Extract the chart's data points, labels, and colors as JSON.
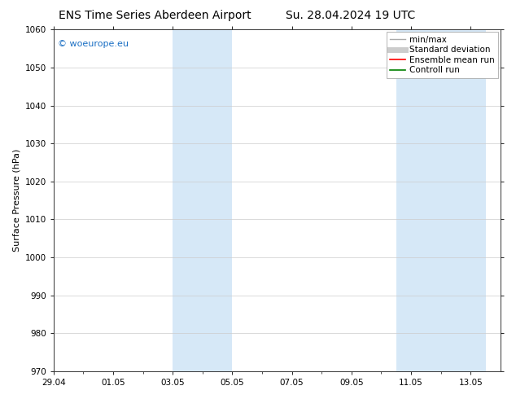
{
  "title_left": "ENS Time Series Aberdeen Airport",
  "title_right": "Su. 28.04.2024 19 UTC",
  "ylabel": "Surface Pressure (hPa)",
  "ylim": [
    970,
    1060
  ],
  "yticks": [
    970,
    980,
    990,
    1000,
    1010,
    1020,
    1030,
    1040,
    1050,
    1060
  ],
  "xtick_labels": [
    "29.04",
    "01.05",
    "03.05",
    "05.05",
    "07.05",
    "09.05",
    "11.05",
    "13.05"
  ],
  "xtick_positions": [
    0,
    2,
    4,
    6,
    8,
    10,
    12,
    14
  ],
  "xlim": [
    0,
    15
  ],
  "shaded_bands": [
    {
      "xstart": 4.0,
      "xend": 6.0
    },
    {
      "xstart": 11.5,
      "xend": 14.5
    }
  ],
  "shaded_color": "#d6e8f7",
  "watermark_text": "© woeurope.eu",
  "watermark_color": "#1a6fc4",
  "legend_items": [
    {
      "label": "min/max",
      "color": "#aaaaaa",
      "lw": 1.0,
      "style": "solid"
    },
    {
      "label": "Standard deviation",
      "color": "#cccccc",
      "lw": 5.0,
      "style": "solid"
    },
    {
      "label": "Ensemble mean run",
      "color": "red",
      "lw": 1.2,
      "style": "solid"
    },
    {
      "label": "Controll run",
      "color": "green",
      "lw": 1.2,
      "style": "solid"
    }
  ],
  "background_color": "#ffffff",
  "plot_bg_color": "#ffffff",
  "grid_color": "#cccccc",
  "title_fontsize": 10,
  "ylabel_fontsize": 8,
  "tick_fontsize": 7.5,
  "legend_fontsize": 7.5,
  "watermark_fontsize": 8
}
